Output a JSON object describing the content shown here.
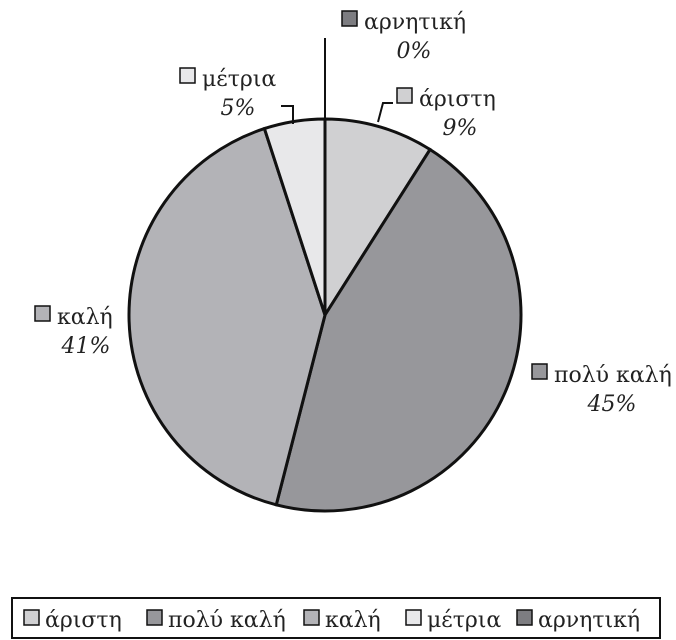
{
  "chart_data": {
    "type": "pie",
    "title": "",
    "slices": [
      {
        "label": "άριστη",
        "value": 9,
        "display": "9%",
        "color": "#d0d0d2"
      },
      {
        "label": "πολύ καλή",
        "value": 45,
        "display": "45%",
        "color": "#97979b"
      },
      {
        "label": "καλή",
        "value": 41,
        "display": "41%",
        "color": "#b3b3b7"
      },
      {
        "label": "μέτρια",
        "value": 5,
        "display": "5%",
        "color": "#e8e8ea"
      },
      {
        "label": "αρνητική",
        "value": 0,
        "display": "0%",
        "color": "#7d7d81"
      }
    ],
    "legend": {
      "position": "bottom",
      "entries": [
        "άριστη",
        "πολύ καλή",
        "καλή",
        "μέτρια",
        "αρνητική"
      ]
    }
  }
}
